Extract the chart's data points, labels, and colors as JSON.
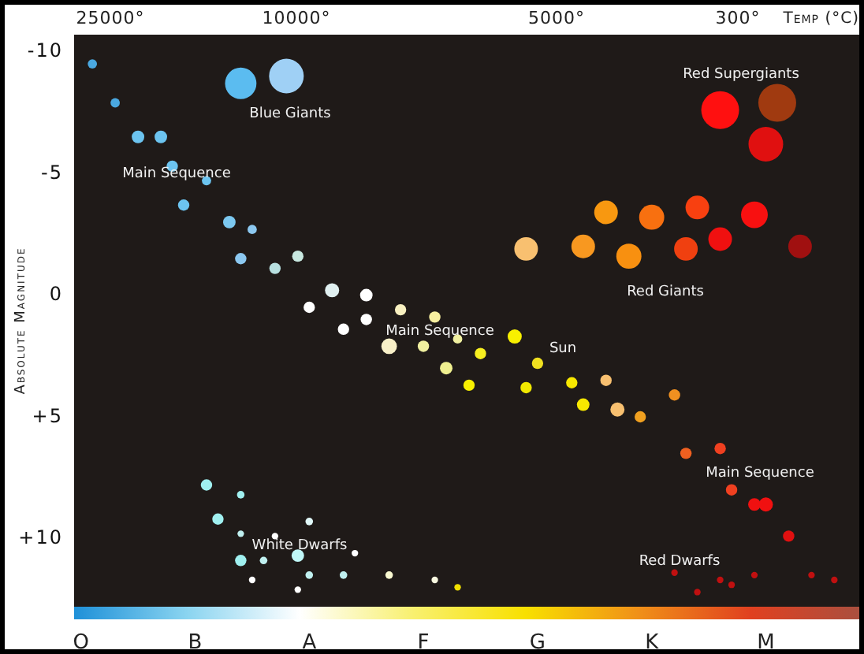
{
  "chart_data": {
    "type": "bubble",
    "ylabel": "Absolute Magnitude",
    "ylim": [
      12.8,
      -10.7
    ],
    "yticks": [
      -10,
      -5,
      0,
      {
        "value": 5,
        "label": "+5"
      },
      {
        "value": 10,
        "label": "+10"
      }
    ],
    "categories": [
      "O",
      null,
      null,
      null,
      null,
      null,
      null,
      null,
      null,
      null,
      "B",
      null,
      null,
      null,
      null,
      null,
      null,
      null,
      null,
      null,
      "A",
      null,
      null,
      null,
      null,
      null,
      null,
      null,
      null,
      null,
      "F",
      null,
      null,
      null,
      null,
      null,
      null,
      null,
      null,
      null,
      "G",
      null,
      null,
      null,
      null,
      null,
      null,
      null,
      null,
      null,
      "K",
      null,
      null,
      null,
      null,
      null,
      null,
      null,
      null,
      null,
      "M",
      null,
      null,
      null,
      null,
      null,
      null,
      null,
      null
    ],
    "series": [
      {
        "values": [
          null,
          -9.5,
          null,
          -7.9,
          null,
          -6.5,
          null,
          -6.5,
          -5.3,
          -3.7,
          null,
          -4.7,
          9.2,
          -3.0,
          -8.7,
          -2.7,
          10.9,
          -1.1,
          -9.0,
          -1.6,
          0.5,
          null,
          -0.2,
          1.4,
          10.6,
          0.0,
          null,
          2.1,
          0.6,
          null,
          2.1,
          0.9,
          3.0,
          1.8,
          3.7,
          2.4,
          null,
          null,
          1.7,
          3.8,
          2.8,
          null,
          null,
          3.6,
          4.5,
          null,
          3.5,
          4.7,
          -1.6,
          5.0,
          -3.2,
          null,
          4.1,
          -1.9,
          -3.6,
          null,
          -7.6,
          8.0,
          null,
          -3.3,
          -6.2,
          -7.9,
          9.9,
          -2.0,
          11.5,
          null,
          11.7,
          null,
          null
        ],
        "sizes": [
          null,
          0.06,
          null,
          0.06,
          null,
          0.11,
          null,
          0.11,
          0.09,
          0.09,
          null,
          0.06,
          0.09,
          0.11,
          0.69,
          0.06,
          0.04,
          0.09,
          0.84,
          0.09,
          0.09,
          null,
          0.14,
          0.09,
          0.03,
          0.11,
          null,
          0.17,
          0.09,
          null,
          0.09,
          0.09,
          0.11,
          0.06,
          0.09,
          0.09,
          null,
          null,
          0.14,
          0.09,
          0.09,
          null,
          null,
          0.09,
          0.11,
          null,
          0.09,
          0.14,
          0.44,
          0.09,
          0.44,
          null,
          0.09,
          0.39,
          0.39,
          null,
          1,
          0.09,
          null,
          0.5,
          0.84,
          1,
          0.09,
          0.39,
          0.03,
          null,
          0.03,
          null,
          null
        ],
        "colors": [
          null,
          "#4aa8e0",
          null,
          "#4aa8e0",
          null,
          "#6cc4f0",
          null,
          "#6cc4f0",
          "#6cc4f0",
          "#6cc4f0",
          null,
          "#6cc4f0",
          "#a0f0f0",
          "#7cc8f0",
          "#5bbcf0",
          "#8cc8f0",
          "#c0f0f0",
          "#b8e0e0",
          "#9fd0f5",
          "#c8e8e0",
          "#ffffff",
          null,
          "#e0f0f0",
          "#ffffff",
          "#ffffff",
          "#ffffff",
          null,
          "#f8f0c8",
          "#f8f0c0",
          null,
          "#f0f0a0",
          "#f8f0a0",
          "#f0f090",
          "#f0f0a0",
          "#f8f000",
          "#f8f020",
          null,
          null,
          "#f8f000",
          "#f0e800",
          "#f0e020",
          null,
          null,
          "#f8e800",
          "#f8e800",
          null,
          "#f8c070",
          "#f8c070",
          "#f89010",
          "#f0a020",
          "#f87010",
          null,
          "#f09020",
          "#f04010",
          "#f84010",
          null,
          "#ff1010",
          "#f04020",
          null,
          "#f81010",
          "#e01010",
          "#a03a10",
          "#e01010",
          "#a01010",
          "#c01010",
          null,
          "#c01010",
          null,
          null
        ]
      },
      {
        "values": [
          null,
          null,
          null,
          null,
          null,
          null,
          null,
          null,
          null,
          null,
          null,
          7.8,
          null,
          null,
          -1.5,
          11.7,
          null,
          9.9,
          null,
          10.7,
          9.3,
          null,
          null,
          11.5,
          null,
          1.0,
          null,
          11.5,
          null,
          null,
          null,
          11.7,
          null,
          12.0,
          null,
          null,
          null,
          null,
          null,
          -1.9,
          null,
          null,
          null,
          null,
          -2.0,
          null,
          -3.4,
          null,
          null,
          null,
          null,
          null,
          11.4,
          6.5,
          12.2,
          null,
          -2.3,
          11.9,
          null,
          8.6,
          8.6,
          null,
          null,
          null,
          null,
          null,
          null,
          null,
          null
        ],
        "sizes": [
          null,
          null,
          null,
          null,
          null,
          null,
          null,
          null,
          null,
          null,
          null,
          0.09,
          null,
          null,
          0.09,
          0.03,
          null,
          0.03,
          null,
          0.11,
          0.04,
          null,
          null,
          0.04,
          null,
          0.09,
          null,
          0.04,
          null,
          null,
          null,
          0.03,
          null,
          0.03,
          null,
          null,
          null,
          null,
          null,
          0.39,
          null,
          null,
          null,
          null,
          0.39,
          null,
          0.39,
          null,
          null,
          null,
          null,
          null,
          0.03,
          0.09,
          0.03,
          null,
          0.39,
          0.03,
          null,
          0.11,
          0.14,
          null,
          null,
          null,
          null,
          null,
          null,
          null,
          null
        ],
        "colors": [
          null,
          null,
          null,
          null,
          null,
          null,
          null,
          null,
          null,
          null,
          null,
          "#a0f0f0",
          null,
          null,
          "#8cc8f0",
          "#ffffff",
          null,
          "#ffffff",
          null,
          "#c0f8f8",
          "#e0f8f8",
          null,
          null,
          "#c0f0f0",
          null,
          "#ffffff",
          null,
          "#f8f8d0",
          null,
          null,
          null,
          "#f8f8e0",
          null,
          "#f0e000",
          null,
          null,
          null,
          null,
          null,
          "#f8c070",
          null,
          null,
          null,
          null,
          "#f89820",
          null,
          "#f89810",
          null,
          null,
          null,
          null,
          null,
          "#c01010",
          "#f06020",
          "#c01010",
          null,
          "#f01010",
          "#c01010",
          null,
          "#f01010",
          "#f01010",
          null,
          null,
          null,
          null,
          null,
          null,
          null,
          null
        ]
      },
      {
        "values": [
          null,
          null,
          null,
          null,
          null,
          null,
          null,
          null,
          null,
          null,
          null,
          null,
          null,
          null,
          8.2,
          null,
          null,
          null,
          null,
          12.1,
          11.5,
          null,
          null,
          null,
          null,
          null,
          null,
          null,
          null,
          null,
          null,
          null,
          null,
          null,
          null,
          null,
          null,
          null,
          null,
          null,
          null,
          null,
          null,
          null,
          null,
          null,
          null,
          null,
          null,
          null,
          null,
          null,
          null,
          null,
          null,
          null,
          6.3,
          null,
          null,
          11.5,
          null,
          null,
          null,
          null,
          null,
          null,
          null,
          null,
          null
        ],
        "sizes": [
          null,
          null,
          null,
          null,
          null,
          null,
          null,
          null,
          null,
          null,
          null,
          null,
          null,
          null,
          0.04,
          null,
          null,
          null,
          null,
          0.03,
          0.04,
          null,
          null,
          null,
          null,
          null,
          null,
          null,
          null,
          null,
          null,
          null,
          null,
          null,
          null,
          null,
          null,
          null,
          null,
          null,
          null,
          null,
          null,
          null,
          null,
          null,
          null,
          null,
          null,
          null,
          null,
          null,
          null,
          null,
          null,
          null,
          0.09,
          null,
          null,
          0.03,
          null,
          null,
          null,
          null,
          null,
          null,
          null,
          null,
          null
        ],
        "colors": [
          null,
          null,
          null,
          null,
          null,
          null,
          null,
          null,
          null,
          null,
          null,
          null,
          null,
          null,
          "#a0f0f0",
          null,
          null,
          null,
          null,
          "#ffffff",
          "#c0f0f0",
          null,
          null,
          null,
          null,
          null,
          null,
          null,
          null,
          null,
          null,
          null,
          null,
          null,
          null,
          null,
          null,
          null,
          null,
          null,
          null,
          null,
          null,
          null,
          null,
          null,
          null,
          null,
          null,
          null,
          null,
          null,
          null,
          null,
          null,
          null,
          "#f04020",
          null,
          null,
          "#c01010",
          null,
          null,
          null,
          null,
          null,
          null,
          null,
          null,
          null
        ]
      },
      {
        "values": [
          null,
          null,
          null,
          null,
          null,
          null,
          null,
          null,
          null,
          null,
          null,
          null,
          null,
          null,
          9.8,
          null,
          null,
          null,
          null,
          null,
          null,
          null,
          null,
          null,
          null,
          null,
          null,
          null,
          null,
          null,
          null,
          null,
          null,
          null,
          null,
          null,
          null,
          null,
          null,
          null,
          null,
          null,
          null,
          null,
          null,
          null,
          null,
          null,
          null,
          null,
          null,
          null,
          null,
          null,
          null,
          null,
          11.7,
          null,
          null,
          null,
          null,
          null,
          null,
          null,
          null,
          null,
          null,
          null,
          null
        ],
        "sizes": [
          null,
          null,
          null,
          null,
          null,
          null,
          null,
          null,
          null,
          null,
          null,
          null,
          null,
          null,
          0.03,
          null,
          null,
          null,
          null,
          null,
          null,
          null,
          null,
          null,
          null,
          null,
          null,
          null,
          null,
          null,
          null,
          null,
          null,
          null,
          null,
          null,
          null,
          null,
          null,
          null,
          null,
          null,
          null,
          null,
          null,
          null,
          null,
          null,
          null,
          null,
          null,
          null,
          null,
          null,
          null,
          null,
          0.03,
          null,
          null,
          null,
          null,
          null,
          null,
          null,
          null,
          null,
          null,
          null,
          null
        ],
        "colors": [
          null,
          null,
          null,
          null,
          null,
          null,
          null,
          null,
          null,
          null,
          null,
          null,
          null,
          null,
          "#c0f0f0",
          null,
          null,
          null,
          null,
          null,
          null,
          null,
          null,
          null,
          null,
          null,
          null,
          null,
          null,
          null,
          null,
          null,
          null,
          null,
          null,
          null,
          null,
          null,
          null,
          null,
          null,
          null,
          null,
          null,
          null,
          null,
          null,
          null,
          null,
          null,
          null,
          null,
          null,
          null,
          null,
          null,
          "#c01010",
          null,
          null,
          null,
          null,
          null,
          null,
          null,
          null,
          null,
          null,
          null,
          null
        ]
      },
      {
        "values": [
          null,
          null,
          null,
          null,
          null,
          null,
          null,
          null,
          null,
          null,
          null,
          null,
          null,
          null,
          10.9,
          null,
          null,
          null,
          null,
          null,
          null,
          null,
          null,
          null,
          null,
          null,
          null,
          null,
          null,
          null,
          null,
          null,
          null,
          null,
          null,
          null,
          null,
          null,
          null,
          null,
          null,
          null,
          null,
          null,
          null,
          null,
          null,
          null,
          null,
          null,
          null,
          null,
          null,
          null,
          null,
          null,
          null,
          null,
          null,
          null,
          null,
          null,
          null,
          null,
          null,
          null,
          null,
          null,
          null
        ],
        "sizes": [
          null,
          null,
          null,
          null,
          null,
          null,
          null,
          null,
          null,
          null,
          null,
          null,
          null,
          null,
          0.09,
          null,
          null,
          null,
          null,
          null,
          null,
          null,
          null,
          null,
          null,
          null,
          null,
          null,
          null,
          null,
          null,
          null,
          null,
          null,
          null,
          null,
          null,
          null,
          null,
          null,
          null,
          null,
          null,
          null,
          null,
          null,
          null,
          null,
          null,
          null,
          null,
          null,
          null,
          null,
          null,
          null,
          null,
          null,
          null,
          null,
          null,
          null,
          null,
          null,
          null,
          null,
          null,
          null,
          null
        ],
        "colors": [
          null,
          null,
          null,
          null,
          null,
          null,
          null,
          null,
          null,
          null,
          null,
          null,
          null,
          null,
          "#a0f0f0",
          null,
          null,
          null,
          null,
          null,
          null,
          null,
          null,
          null,
          null,
          null,
          null,
          null,
          null,
          null,
          null,
          null,
          null,
          null,
          null,
          null,
          null,
          null,
          null,
          null,
          null,
          null,
          null,
          null,
          null,
          null,
          null,
          null,
          null,
          null,
          null,
          null,
          null,
          null,
          null,
          null,
          null,
          null,
          null,
          null,
          null,
          null,
          null,
          null,
          null,
          null,
          null,
          null,
          null
        ]
      }
    ],
    "annotations": [
      "Blue Giants",
      "Main Sequence",
      "Red Supergiants",
      "Red Giants",
      "Main Sequence",
      "Sun",
      "Main Sequence",
      "White Dwarfs",
      "Red Dwarfs",
      "25000°",
      "10000°",
      "5000°",
      "300°",
      "Temp (°C)"
    ]
  }
}
